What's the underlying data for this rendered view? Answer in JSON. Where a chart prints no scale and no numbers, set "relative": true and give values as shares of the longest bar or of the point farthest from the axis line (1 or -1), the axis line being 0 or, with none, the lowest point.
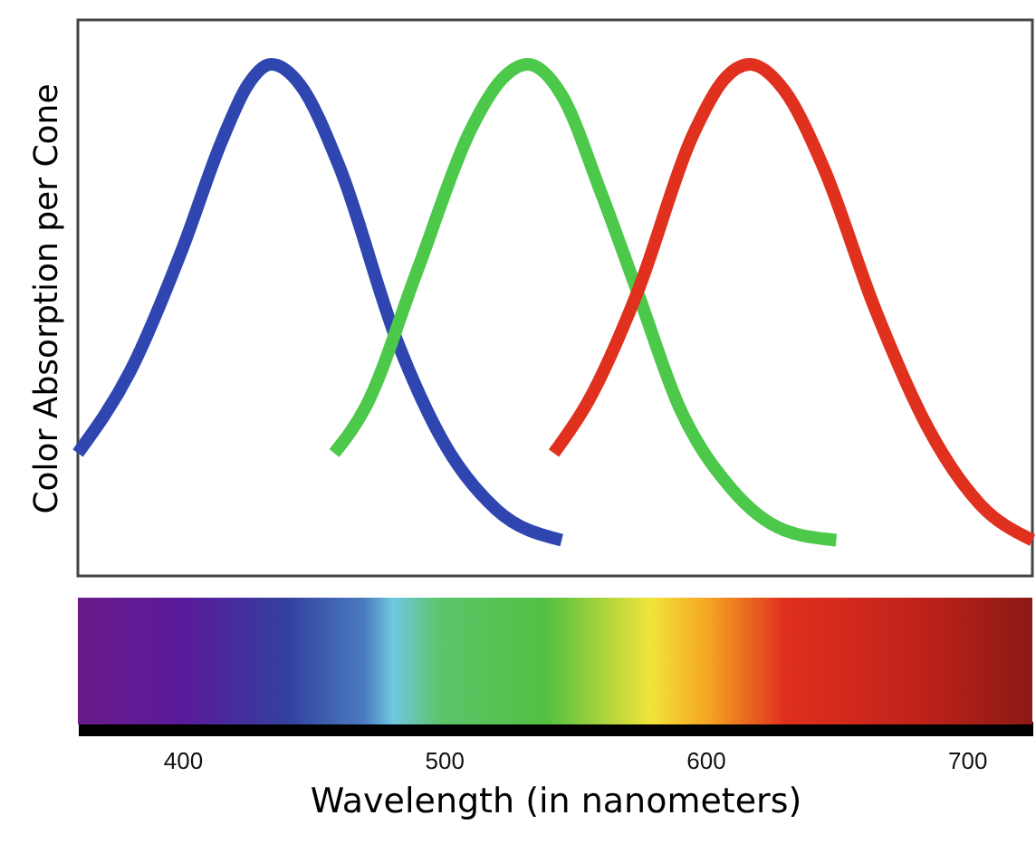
{
  "chart_data": {
    "type": "line",
    "relative": true,
    "xlabel": "Wavelength (in nanometers)",
    "ylabel": "Color Absorption per Cone",
    "xlim": [
      360,
      725
    ],
    "xticks": [
      400,
      500,
      600,
      700
    ],
    "grid": false,
    "marker": "none",
    "line_style": "solid",
    "series": [
      {
        "color": "#2f46b0",
        "x": [
          360,
          380,
          400,
          415,
          425,
          434,
          445,
          460,
          482,
          500,
          520,
          545
        ],
        "values": [
          0.24,
          0.4,
          0.64,
          0.85,
          0.96,
          1,
          0.96,
          0.8,
          0.46,
          0.26,
          0.13,
          0.07
        ]
      },
      {
        "color": "#4cc84a",
        "x": [
          458,
          470,
          490,
          510,
          522,
          532,
          545,
          560,
          574,
          590,
          610,
          630,
          650
        ],
        "values": [
          0.24,
          0.33,
          0.6,
          0.87,
          0.97,
          1,
          0.94,
          0.75,
          0.555,
          0.33,
          0.17,
          0.09,
          0.07
        ]
      },
      {
        "color": "#e0301e",
        "x": [
          542,
          555,
          574,
          595,
          607,
          617,
          630,
          645,
          665,
          685,
          705,
          725
        ],
        "values": [
          0.24,
          0.34,
          0.555,
          0.86,
          0.97,
          1,
          0.95,
          0.8,
          0.52,
          0.29,
          0.14,
          0.07
        ]
      }
    ]
  }
}
